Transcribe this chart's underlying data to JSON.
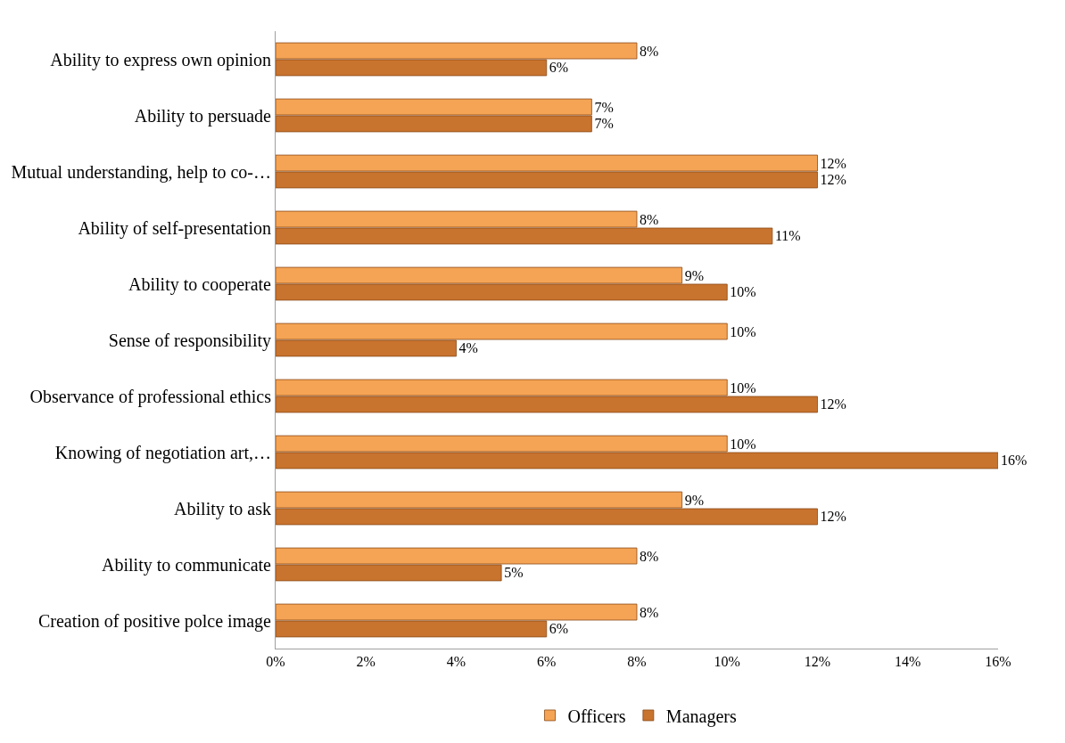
{
  "chart_data": {
    "type": "bar",
    "orientation": "horizontal",
    "categories": [
      "Ability to express own opinion",
      "Ability to persuade",
      "Mutual understanding, help to co-…",
      "Ability of self-presentation",
      "Ability to cooperate",
      "Sense of responsibility",
      "Observance of professional ethics",
      "Knowing of negotiation art,…",
      "Ability to ask",
      "Ability to communicate",
      "Creation of positive polce image"
    ],
    "series": [
      {
        "name": "Officers",
        "color": "#f5a455",
        "values": [
          8,
          7,
          12,
          8,
          9,
          10,
          10,
          10,
          9,
          8,
          8
        ],
        "value_labels": [
          "8%",
          "7%",
          "12%",
          "8%",
          "9%",
          "10%",
          "10%",
          "10%",
          "9%",
          "8%",
          "8%"
        ]
      },
      {
        "name": "Managers",
        "color": "#c8732e",
        "values": [
          6,
          7,
          12,
          11,
          10,
          4,
          12,
          16,
          12,
          5,
          6
        ],
        "value_labels": [
          "6%",
          "7%",
          "12%",
          "11%",
          "10%",
          "4%",
          "12%",
          "16%",
          "12%",
          "5%",
          "6%"
        ]
      }
    ],
    "xlim": [
      0,
      16
    ],
    "xticks": [
      {
        "value": 0,
        "label": "0%"
      },
      {
        "value": 2,
        "label": "2%"
      },
      {
        "value": 4,
        "label": "4%"
      },
      {
        "value": 6,
        "label": "6%"
      },
      {
        "value": 8,
        "label": "8%"
      },
      {
        "value": 10,
        "label": "10%"
      },
      {
        "value": 12,
        "label": "12%"
      },
      {
        "value": 14,
        "label": "14%"
      },
      {
        "value": 16,
        "label": "16%"
      }
    ],
    "legend": "bottom"
  }
}
